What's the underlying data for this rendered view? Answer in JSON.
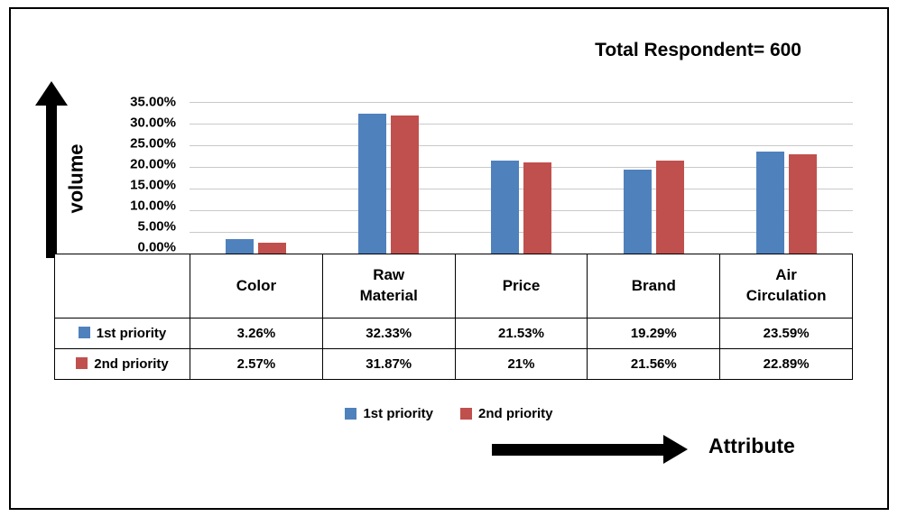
{
  "chart_data": {
    "type": "bar",
    "title": "Total Respondent= 600",
    "categories": [
      "Color",
      "Raw Material",
      "Price",
      "Brand",
      "Air Circulation"
    ],
    "categories_display": [
      "Color",
      "Raw\nMaterial",
      "Price",
      "Brand",
      "Air\nCirculation"
    ],
    "series": [
      {
        "name": "1st priority",
        "color": "#4f81bd",
        "values": [
          3.26,
          32.33,
          21.53,
          19.29,
          23.59
        ],
        "labels": [
          "3.26%",
          "32.33%",
          "21.53%",
          "19.29%",
          "23.59%"
        ]
      },
      {
        "name": "2nd priority",
        "color": "#c0504d",
        "values": [
          2.57,
          31.87,
          21,
          21.56,
          22.89
        ],
        "labels": [
          "2.57%",
          "31.87%",
          "21%",
          "21.56%",
          "22.89%"
        ]
      }
    ],
    "xlabel": "Attribute",
    "ylabel": "volume",
    "ylim": [
      0,
      35
    ],
    "y_ticks": [
      "35.00%",
      "30.00%",
      "25.00%",
      "20.00%",
      "15.00%",
      "10.00%",
      "5.00%",
      "0.00%"
    ],
    "grid": true,
    "legend_position": "bottom",
    "gridline_color": "#c9c9c9",
    "frame_border_color": "#000000"
  }
}
